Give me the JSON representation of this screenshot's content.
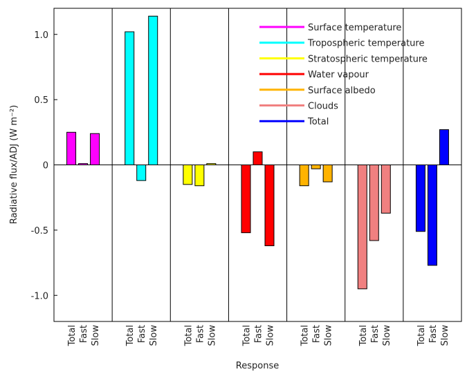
{
  "chart_data": {
    "type": "grouped-bar",
    "y_label": "Radiative flux/ADJ (W m⁻²)",
    "x_label": "Response",
    "categories": [
      "Total",
      "Fast",
      "Slow"
    ],
    "series": [
      {
        "name": "Surface temperature",
        "color": "#ff00ff",
        "values": [
          0.25,
          0.01,
          0.24
        ]
      },
      {
        "name": "Tropospheric temperature",
        "color": "#00ffff",
        "values": [
          1.02,
          -0.12,
          1.14
        ]
      },
      {
        "name": "Stratospheric temperature",
        "color": "#ffff00",
        "values": [
          -0.15,
          -0.16,
          0.01
        ]
      },
      {
        "name": "Water vapour",
        "color": "#ff0000",
        "values": [
          -0.52,
          0.1,
          -0.62
        ]
      },
      {
        "name": "Surface albedo",
        "color": "#ffb300",
        "values": [
          -0.16,
          -0.03,
          -0.13
        ]
      },
      {
        "name": "Clouds",
        "color": "#f08080",
        "values": [
          -0.95,
          -0.58,
          -0.37
        ]
      },
      {
        "name": "Total",
        "color": "#0000ff",
        "values": [
          -0.51,
          -0.77,
          0.27
        ]
      }
    ],
    "ylim": [
      -1.2,
      1.2
    ],
    "yticks": [
      {
        "value": 1,
        "label": "1.0"
      },
      0.5,
      0,
      -0.5,
      {
        "value": -1,
        "label": "-1.0"
      }
    ]
  }
}
